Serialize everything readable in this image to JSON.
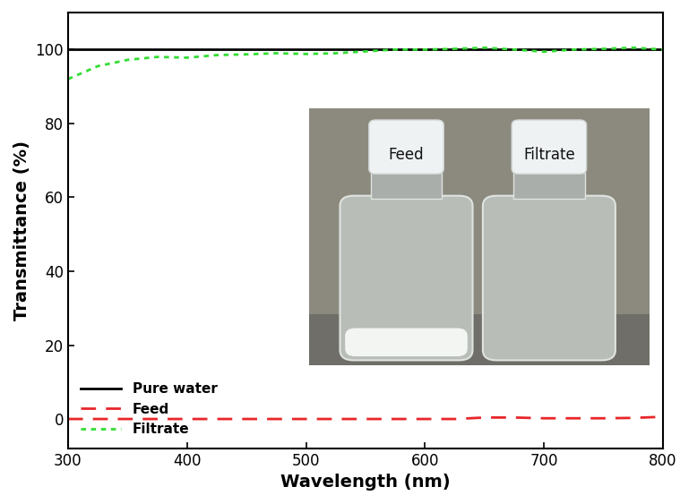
{
  "chart_data": {
    "type": "line",
    "x_label": "Wavelength (nm)",
    "y_label": "Transmittance (%)",
    "x": [
      300,
      325,
      350,
      375,
      400,
      425,
      450,
      475,
      500,
      525,
      550,
      575,
      600,
      625,
      650,
      675,
      700,
      725,
      750,
      775,
      800
    ],
    "series": [
      {
        "name": "Pure water",
        "color": "#000000",
        "line_style": "solid",
        "values": [
          100,
          100,
          100,
          100,
          100,
          100,
          100,
          100,
          100,
          100,
          100,
          100,
          100,
          100,
          100,
          100,
          100,
          100,
          100,
          100,
          100
        ]
      },
      {
        "name": "Feed",
        "color": "#e8262a",
        "line_style": "dashed",
        "values": [
          0,
          0,
          0,
          0,
          0,
          0,
          0,
          0,
          0,
          0,
          0,
          0,
          0,
          0,
          0.4,
          0.4,
          0.2,
          0.2,
          0.2,
          0.3,
          0.6
        ]
      },
      {
        "name": "Filtrate",
        "color": "#33dd33",
        "line_style": "dotted",
        "values": [
          92,
          95.5,
          97.2,
          98,
          97.8,
          98.5,
          98.7,
          99,
          98.8,
          99,
          99.5,
          100,
          100,
          100.2,
          100.5,
          100,
          99.4,
          100,
          100.2,
          100.5,
          100
        ]
      }
    ],
    "xlim": [
      300,
      800
    ],
    "xticks": [
      300,
      400,
      500,
      600,
      700,
      800
    ],
    "ylim": [
      -8,
      110
    ],
    "yticks": [
      0,
      20,
      40,
      60,
      80,
      100
    ],
    "legend": "lower left",
    "annotations": [
      "Feed",
      "Filtrate"
    ]
  }
}
